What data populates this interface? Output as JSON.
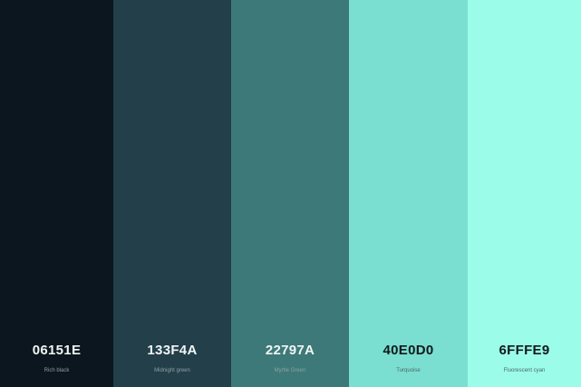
{
  "palette": {
    "swatches": [
      {
        "hex": "06151E",
        "name": "Rich black",
        "color": "#0B161E"
      },
      {
        "hex": "133F4A",
        "name": "Midnight green",
        "color": "#223F4A"
      },
      {
        "hex": "22797A",
        "name": "Myrtle Green",
        "color": "#3D7979"
      },
      {
        "hex": "40E0D0",
        "name": "Turquoise",
        "color": "#7ADED0"
      },
      {
        "hex": "6FFFE9",
        "name": "Fluorescent cyan",
        "color": "#9BFCE9"
      }
    ]
  }
}
